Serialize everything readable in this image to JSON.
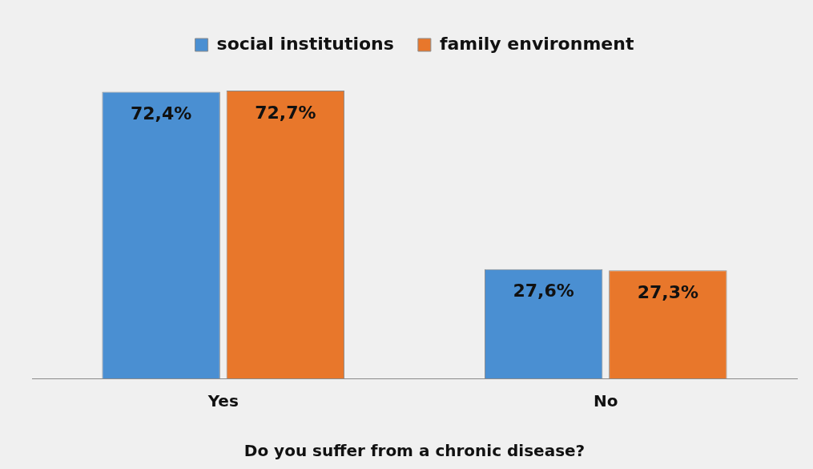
{
  "chart_data": {
    "type": "bar",
    "xlabel": "Do you suffer from a chronic disease?",
    "categories": [
      "Yes",
      "No"
    ],
    "series": [
      {
        "name": "social institutions",
        "color": "#4a8fd2",
        "values": [
          72.4,
          27.6
        ],
        "value_labels": [
          "72,4%",
          "27,6%"
        ]
      },
      {
        "name": "family environment",
        "color": "#e8772b",
        "values": [
          72.7,
          27.3
        ],
        "value_labels": [
          "72,7%",
          "27,3%"
        ]
      }
    ],
    "legend": "top",
    "grid": false
  }
}
